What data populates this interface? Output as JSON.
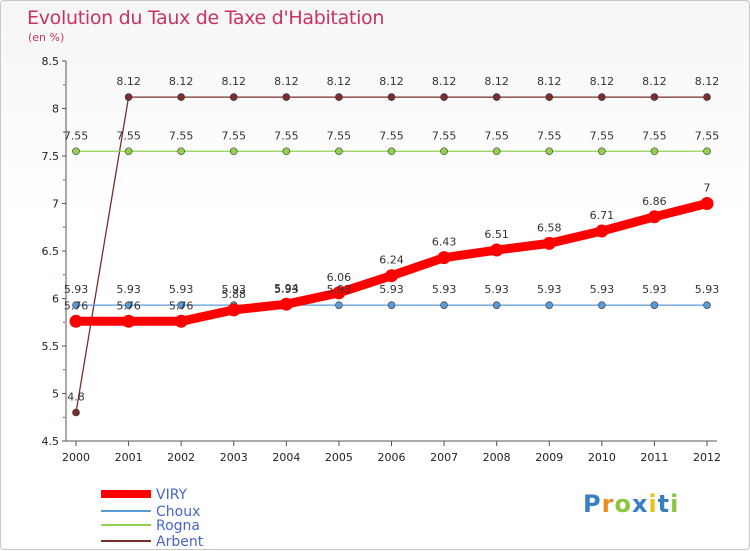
{
  "chart_data": {
    "type": "line",
    "title": "Evolution du Taux de Taxe d'Habitation",
    "ylabel": "(en %)",
    "xlabel": "",
    "ylim": [
      4.5,
      8.5
    ],
    "yticks": [
      "4.5",
      "5",
      "5.5",
      "6",
      "6.5",
      "7",
      "7.5",
      "8",
      "8.5"
    ],
    "categories": [
      "2000",
      "2001",
      "2002",
      "2003",
      "2004",
      "2005",
      "2006",
      "2007",
      "2008",
      "2009",
      "2010",
      "2011",
      "2012"
    ],
    "series": [
      {
        "name": "Arbent",
        "color": "#7b2e2e",
        "values": [
          4.8,
          8.12,
          8.12,
          8.12,
          8.12,
          8.12,
          8.12,
          8.12,
          8.12,
          8.12,
          8.12,
          8.12,
          8.12
        ],
        "labels": [
          "4.8",
          "8.12",
          "8.12",
          "8.12",
          "8.12",
          "8.12",
          "8.12",
          "8.12",
          "8.12",
          "8.12",
          "8.12",
          "8.12",
          "8.12"
        ]
      },
      {
        "name": "Rogna",
        "color": "#92d050",
        "values": [
          7.55,
          7.55,
          7.55,
          7.55,
          7.55,
          7.55,
          7.55,
          7.55,
          7.55,
          7.55,
          7.55,
          7.55,
          7.55
        ],
        "labels": [
          "7.55",
          "7.55",
          "7.55",
          "7.55",
          "7.55",
          "7.55",
          "7.55",
          "7.55",
          "7.55",
          "7.55",
          "7.55",
          "7.55",
          "7.55"
        ]
      },
      {
        "name": "Choux",
        "color": "#5b9bd5",
        "values": [
          5.93,
          5.93,
          5.93,
          5.93,
          5.93,
          5.93,
          5.93,
          5.93,
          5.93,
          5.93,
          5.93,
          5.93,
          5.93
        ],
        "labels": [
          "5.93",
          "5.93",
          "5.93",
          "5.93",
          "5.93",
          "5.93",
          "5.93",
          "5.93",
          "5.93",
          "5.93",
          "5.93",
          "5.93",
          "5.93"
        ]
      },
      {
        "name": "VIRY",
        "color": "#ff0000",
        "values": [
          5.76,
          5.76,
          5.76,
          5.88,
          5.94,
          6.06,
          6.24,
          6.43,
          6.51,
          6.58,
          6.71,
          6.86,
          7
        ],
        "labels": [
          "5.76",
          "5.76",
          "5.76",
          "5.88",
          "5.94",
          "6.06",
          "6.24",
          "6.43",
          "6.51",
          "6.58",
          "6.71",
          "6.86",
          "7"
        ]
      }
    ],
    "legend": [
      "VIRY",
      "Choux",
      "Rogna",
      "Arbent"
    ],
    "legend_position": "bottom-left"
  },
  "brand": {
    "letters": [
      "P",
      "r",
      "o",
      "x",
      "i",
      "t",
      "i"
    ],
    "colors": [
      "#3a7fc1",
      "#f08c1e",
      "#8cc63f",
      "#3a7fc1",
      "#e8c31b",
      "#3a7fc1",
      "#8cc63f"
    ]
  }
}
